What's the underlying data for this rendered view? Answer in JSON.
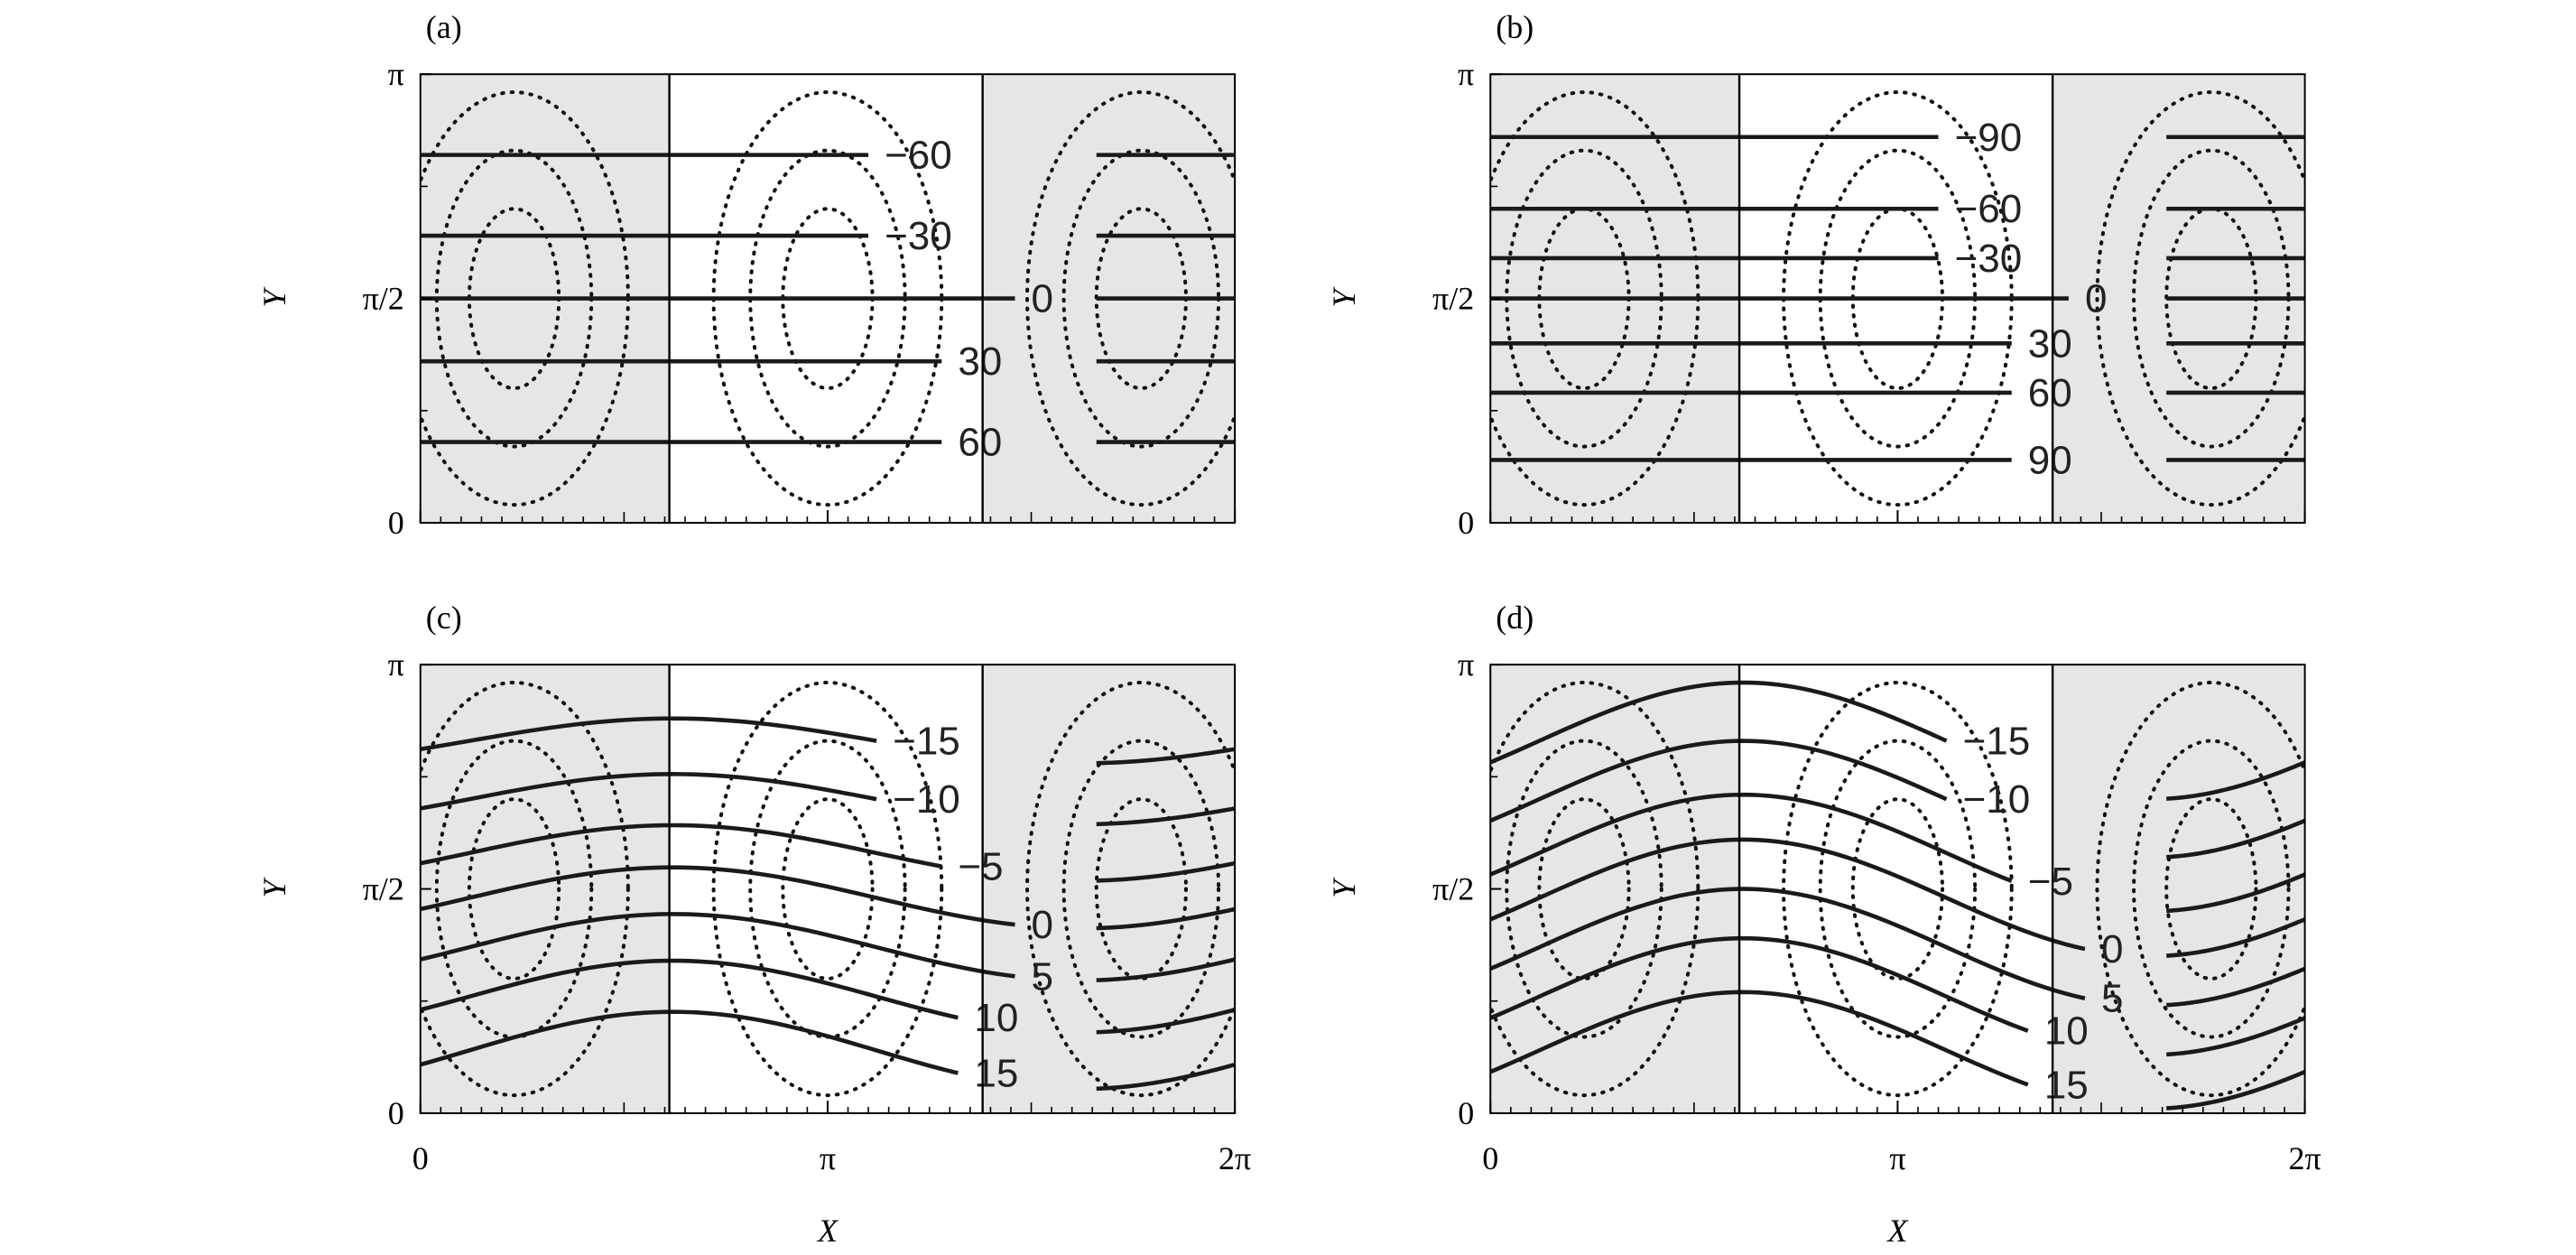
{
  "figure": {
    "x_axis": {
      "title": "X",
      "ticks": [
        "0",
        "π",
        "2π"
      ]
    },
    "y_axis": {
      "title": "Y",
      "ticks": [
        "0",
        "π/2",
        "π"
      ]
    },
    "panels": [
      {
        "tag": "(a)",
        "style": "flat",
        "labels": [
          "−60",
          "−30",
          "0",
          "30",
          "60"
        ],
        "show_x_ticks": false
      },
      {
        "tag": "(b)",
        "style": "flat",
        "labels": [
          "−90",
          "−60",
          "−30",
          "0",
          "30",
          "60",
          "90"
        ],
        "show_x_ticks": false
      },
      {
        "tag": "(c)",
        "style": "wavy",
        "labels": [
          "−15",
          "−10",
          "−5",
          "0",
          "5",
          "10",
          "15"
        ],
        "show_x_ticks": true
      },
      {
        "tag": "(d)",
        "style": "wavy-strong",
        "labels": [
          "−15",
          "−10",
          "−5",
          "0",
          "5",
          "10",
          "15"
        ],
        "show_x_ticks": true
      }
    ],
    "colors": {
      "shade": "#e6e6e6",
      "line": "#1a1a1a"
    }
  }
}
